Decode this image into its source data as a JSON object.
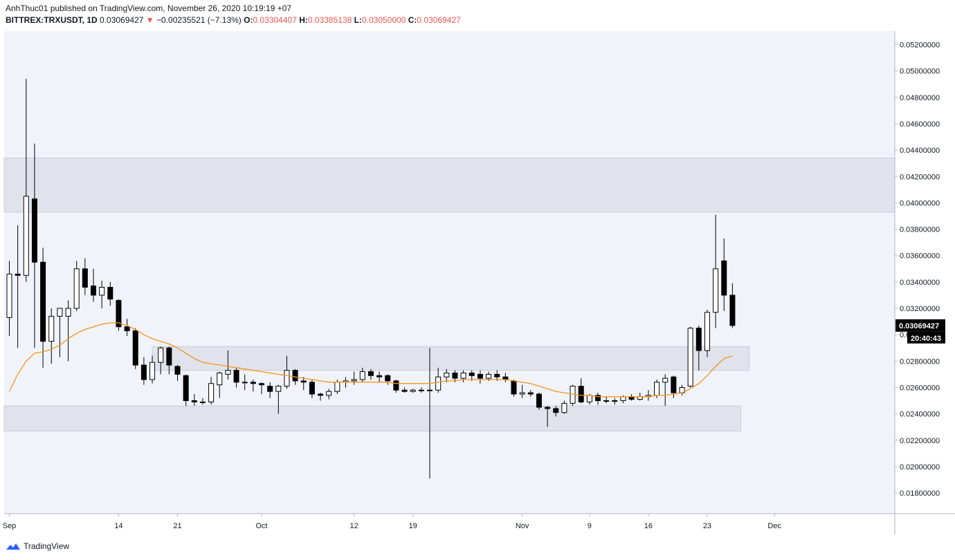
{
  "header": {
    "published_line": "AnhThuc01 published on TradingView.com, November 26, 2020 10:19:19 +07",
    "symbol": "BITTREX:TRXUSDT, 1D",
    "last": "0.03069427",
    "change_arrow": "▼",
    "change": "−0.00235521 (−7.13%)",
    "o_label": "O:",
    "o_value": "0.03304407",
    "h_label": "H:",
    "h_value": "0.03385138",
    "l_label": "L:",
    "l_value": "0.03050000",
    "c_label": "C:",
    "c_value": "0.03069427"
  },
  "footer": {
    "brand": "TradingView",
    "logo_icon": "tradingview-logo-icon"
  },
  "colors": {
    "up_body": "#ffffff",
    "down_body": "#000000",
    "wick": "#000000",
    "ma": "#f7931a",
    "zone": "#e0e3eb",
    "bg": "#f0f3fa",
    "price_tag": "#000000"
  },
  "chart_data": {
    "type": "candlestick",
    "ylim": [
      0.017,
      0.053
    ],
    "y_ticks": [
      "0.05200000",
      "0.05000000",
      "0.04800000",
      "0.04600000",
      "0.04400000",
      "0.04200000",
      "0.04000000",
      "0.03800000",
      "0.03600000",
      "0.03400000",
      "0.03200000",
      "0.03000000",
      "0.02800000",
      "0.02600000",
      "0.02400000",
      "0.02200000",
      "0.02000000",
      "0.01800000"
    ],
    "x_ticks": [
      {
        "label": "Sep",
        "date": "2020-09-01"
      },
      {
        "label": "14",
        "date": "2020-09-14"
      },
      {
        "label": "21",
        "date": "2020-09-21"
      },
      {
        "label": "Oct",
        "date": "2020-10-01"
      },
      {
        "label": "12",
        "date": "2020-10-12"
      },
      {
        "label": "19",
        "date": "2020-10-19"
      },
      {
        "label": "Nov",
        "date": "2020-11-01"
      },
      {
        "label": "9",
        "date": "2020-11-09"
      },
      {
        "label": "16",
        "date": "2020-11-16"
      },
      {
        "label": "23",
        "date": "2020-11-23"
      },
      {
        "label": "Dec",
        "date": "2020-12-01"
      }
    ],
    "price_label": "0.03069427",
    "countdown_label": "20:40:43",
    "zones": [
      {
        "from": "2020-08-31",
        "to": "2020-12-31",
        "low": 0.0393,
        "high": 0.0434
      },
      {
        "from": "2020-09-18",
        "to": "2020-11-28",
        "low": 0.0273,
        "high": 0.0291
      },
      {
        "from": "2020-08-31",
        "to": "2020-11-27",
        "low": 0.0227,
        "high": 0.0246
      }
    ],
    "candles": [
      {
        "d": "2020-09-01",
        "o": 0.0313,
        "h": 0.0356,
        "l": 0.0299,
        "c": 0.0346
      },
      {
        "d": "2020-09-02",
        "o": 0.0346,
        "h": 0.0383,
        "l": 0.029,
        "c": 0.0345
      },
      {
        "d": "2020-09-03",
        "o": 0.0345,
        "h": 0.0494,
        "l": 0.034,
        "c": 0.0405
      },
      {
        "d": "2020-09-04",
        "o": 0.0403,
        "h": 0.0445,
        "l": 0.029,
        "c": 0.0355
      },
      {
        "d": "2020-09-05",
        "o": 0.0355,
        "h": 0.0366,
        "l": 0.0275,
        "c": 0.0295
      },
      {
        "d": "2020-09-06",
        "o": 0.0295,
        "h": 0.032,
        "l": 0.0278,
        "c": 0.0314
      },
      {
        "d": "2020-09-07",
        "o": 0.0314,
        "h": 0.0318,
        "l": 0.0283,
        "c": 0.032
      },
      {
        "d": "2020-09-08",
        "o": 0.0314,
        "h": 0.0326,
        "l": 0.028,
        "c": 0.032
      },
      {
        "d": "2020-09-09",
        "o": 0.032,
        "h": 0.0356,
        "l": 0.0318,
        "c": 0.035
      },
      {
        "d": "2020-09-10",
        "o": 0.035,
        "h": 0.0358,
        "l": 0.033,
        "c": 0.0336
      },
      {
        "d": "2020-09-11",
        "o": 0.0337,
        "h": 0.035,
        "l": 0.0325,
        "c": 0.033
      },
      {
        "d": "2020-09-12",
        "o": 0.033,
        "h": 0.0341,
        "l": 0.032,
        "c": 0.0336
      },
      {
        "d": "2020-09-13",
        "o": 0.0336,
        "h": 0.034,
        "l": 0.0322,
        "c": 0.0327
      },
      {
        "d": "2020-09-14",
        "o": 0.0326,
        "h": 0.0327,
        "l": 0.0303,
        "c": 0.0306
      },
      {
        "d": "2020-09-15",
        "o": 0.0306,
        "h": 0.0312,
        "l": 0.0299,
        "c": 0.0303
      },
      {
        "d": "2020-09-16",
        "o": 0.0303,
        "h": 0.0305,
        "l": 0.0274,
        "c": 0.0277
      },
      {
        "d": "2020-09-17",
        "o": 0.0277,
        "h": 0.0283,
        "l": 0.0262,
        "c": 0.0266
      },
      {
        "d": "2020-09-18",
        "o": 0.0266,
        "h": 0.0284,
        "l": 0.0263,
        "c": 0.0279
      },
      {
        "d": "2020-09-19",
        "o": 0.0279,
        "h": 0.0291,
        "l": 0.027,
        "c": 0.029
      },
      {
        "d": "2020-09-20",
        "o": 0.029,
        "h": 0.0291,
        "l": 0.027,
        "c": 0.0277
      },
      {
        "d": "2020-09-21",
        "o": 0.0276,
        "h": 0.0277,
        "l": 0.0265,
        "c": 0.027
      },
      {
        "d": "2020-09-22",
        "o": 0.0269,
        "h": 0.027,
        "l": 0.0246,
        "c": 0.025
      },
      {
        "d": "2020-09-23",
        "o": 0.025,
        "h": 0.0255,
        "l": 0.0246,
        "c": 0.0249
      },
      {
        "d": "2020-09-24",
        "o": 0.0249,
        "h": 0.0252,
        "l": 0.0247,
        "c": 0.0249
      },
      {
        "d": "2020-09-25",
        "o": 0.0249,
        "h": 0.0268,
        "l": 0.0247,
        "c": 0.0263
      },
      {
        "d": "2020-09-26",
        "o": 0.0262,
        "h": 0.0272,
        "l": 0.0252,
        "c": 0.0271
      },
      {
        "d": "2020-09-27",
        "o": 0.027,
        "h": 0.0288,
        "l": 0.0266,
        "c": 0.0273
      },
      {
        "d": "2020-09-28",
        "o": 0.0273,
        "h": 0.0275,
        "l": 0.026,
        "c": 0.0264
      },
      {
        "d": "2020-09-29",
        "o": 0.0264,
        "h": 0.027,
        "l": 0.0258,
        "c": 0.0264
      },
      {
        "d": "2020-09-30",
        "o": 0.0264,
        "h": 0.0266,
        "l": 0.0257,
        "c": 0.0263
      },
      {
        "d": "2020-10-01",
        "o": 0.0263,
        "h": 0.0264,
        "l": 0.0255,
        "c": 0.0262
      },
      {
        "d": "2020-10-02",
        "o": 0.0261,
        "h": 0.0264,
        "l": 0.0252,
        "c": 0.0257
      },
      {
        "d": "2020-10-03",
        "o": 0.0257,
        "h": 0.0262,
        "l": 0.024,
        "c": 0.0261
      },
      {
        "d": "2020-10-04",
        "o": 0.0261,
        "h": 0.0284,
        "l": 0.0259,
        "c": 0.0273
      },
      {
        "d": "2020-10-05",
        "o": 0.0273,
        "h": 0.0274,
        "l": 0.0262,
        "c": 0.0265
      },
      {
        "d": "2020-10-06",
        "o": 0.0265,
        "h": 0.0268,
        "l": 0.0258,
        "c": 0.0264
      },
      {
        "d": "2020-10-07",
        "o": 0.0264,
        "h": 0.0266,
        "l": 0.0252,
        "c": 0.0255
      },
      {
        "d": "2020-10-08",
        "o": 0.0255,
        "h": 0.0256,
        "l": 0.025,
        "c": 0.0254
      },
      {
        "d": "2020-10-09",
        "o": 0.0254,
        "h": 0.0259,
        "l": 0.0251,
        "c": 0.0257
      },
      {
        "d": "2020-10-10",
        "o": 0.0257,
        "h": 0.0266,
        "l": 0.0255,
        "c": 0.0264
      },
      {
        "d": "2020-10-11",
        "o": 0.0264,
        "h": 0.0268,
        "l": 0.026,
        "c": 0.0265
      },
      {
        "d": "2020-10-12",
        "o": 0.0265,
        "h": 0.0272,
        "l": 0.0262,
        "c": 0.0266
      },
      {
        "d": "2020-10-13",
        "o": 0.0266,
        "h": 0.0275,
        "l": 0.0264,
        "c": 0.0272
      },
      {
        "d": "2020-10-14",
        "o": 0.0272,
        "h": 0.0274,
        "l": 0.0266,
        "c": 0.0269
      },
      {
        "d": "2020-10-15",
        "o": 0.0269,
        "h": 0.0272,
        "l": 0.0264,
        "c": 0.0268
      },
      {
        "d": "2020-10-16",
        "o": 0.0269,
        "h": 0.027,
        "l": 0.0262,
        "c": 0.0265
      },
      {
        "d": "2020-10-17",
        "o": 0.0265,
        "h": 0.0266,
        "l": 0.0256,
        "c": 0.0258
      },
      {
        "d": "2020-10-18",
        "o": 0.0258,
        "h": 0.026,
        "l": 0.0256,
        "c": 0.0257
      },
      {
        "d": "2020-10-19",
        "o": 0.0257,
        "h": 0.0259,
        "l": 0.0256,
        "c": 0.0258
      },
      {
        "d": "2020-10-20",
        "o": 0.0258,
        "h": 0.026,
        "l": 0.0256,
        "c": 0.0258
      },
      {
        "d": "2020-10-21",
        "o": 0.0258,
        "h": 0.029,
        "l": 0.0191,
        "c": 0.0258
      },
      {
        "d": "2020-10-22",
        "o": 0.0258,
        "h": 0.0275,
        "l": 0.0256,
        "c": 0.0268
      },
      {
        "d": "2020-10-23",
        "o": 0.0268,
        "h": 0.0274,
        "l": 0.0264,
        "c": 0.0271
      },
      {
        "d": "2020-10-24",
        "o": 0.0271,
        "h": 0.0273,
        "l": 0.0264,
        "c": 0.0267
      },
      {
        "d": "2020-10-25",
        "o": 0.0267,
        "h": 0.0273,
        "l": 0.0264,
        "c": 0.0271
      },
      {
        "d": "2020-10-26",
        "o": 0.0271,
        "h": 0.0273,
        "l": 0.0265,
        "c": 0.0269
      },
      {
        "d": "2020-10-27",
        "o": 0.027,
        "h": 0.0273,
        "l": 0.0263,
        "c": 0.0267
      },
      {
        "d": "2020-10-28",
        "o": 0.0267,
        "h": 0.0272,
        "l": 0.0265,
        "c": 0.027
      },
      {
        "d": "2020-10-29",
        "o": 0.027,
        "h": 0.0273,
        "l": 0.0265,
        "c": 0.0268
      },
      {
        "d": "2020-10-30",
        "o": 0.0268,
        "h": 0.0271,
        "l": 0.0264,
        "c": 0.0266
      },
      {
        "d": "2020-10-31",
        "o": 0.0265,
        "h": 0.0266,
        "l": 0.0253,
        "c": 0.0255
      },
      {
        "d": "2020-11-01",
        "o": 0.0255,
        "h": 0.0262,
        "l": 0.0252,
        "c": 0.0256
      },
      {
        "d": "2020-11-02",
        "o": 0.0256,
        "h": 0.0258,
        "l": 0.0253,
        "c": 0.0255
      },
      {
        "d": "2020-11-03",
        "o": 0.0255,
        "h": 0.0256,
        "l": 0.0243,
        "c": 0.0245
      },
      {
        "d": "2020-11-04",
        "o": 0.0245,
        "h": 0.0246,
        "l": 0.023,
        "c": 0.0244
      },
      {
        "d": "2020-11-05",
        "o": 0.0244,
        "h": 0.0246,
        "l": 0.0238,
        "c": 0.0241
      },
      {
        "d": "2020-11-06",
        "o": 0.0241,
        "h": 0.025,
        "l": 0.024,
        "c": 0.0248
      },
      {
        "d": "2020-11-07",
        "o": 0.0248,
        "h": 0.0262,
        "l": 0.0246,
        "c": 0.0261
      },
      {
        "d": "2020-11-08",
        "o": 0.0261,
        "h": 0.0267,
        "l": 0.0248,
        "c": 0.0249
      },
      {
        "d": "2020-11-09",
        "o": 0.0249,
        "h": 0.0255,
        "l": 0.0247,
        "c": 0.0254
      },
      {
        "d": "2020-11-10",
        "o": 0.0254,
        "h": 0.0256,
        "l": 0.0247,
        "c": 0.025
      },
      {
        "d": "2020-11-11",
        "o": 0.025,
        "h": 0.0253,
        "l": 0.0248,
        "c": 0.025
      },
      {
        "d": "2020-11-12",
        "o": 0.025,
        "h": 0.0252,
        "l": 0.0247,
        "c": 0.025
      },
      {
        "d": "2020-11-13",
        "o": 0.025,
        "h": 0.0254,
        "l": 0.0248,
        "c": 0.0253
      },
      {
        "d": "2020-11-14",
        "o": 0.0253,
        "h": 0.0255,
        "l": 0.025,
        "c": 0.0251
      },
      {
        "d": "2020-11-15",
        "o": 0.0251,
        "h": 0.0256,
        "l": 0.025,
        "c": 0.0253
      },
      {
        "d": "2020-11-16",
        "o": 0.0253,
        "h": 0.0258,
        "l": 0.025,
        "c": 0.0254
      },
      {
        "d": "2020-11-17",
        "o": 0.0254,
        "h": 0.0266,
        "l": 0.0252,
        "c": 0.0264
      },
      {
        "d": "2020-11-18",
        "o": 0.0264,
        "h": 0.027,
        "l": 0.0246,
        "c": 0.0267
      },
      {
        "d": "2020-11-19",
        "o": 0.0268,
        "h": 0.0269,
        "l": 0.0252,
        "c": 0.0256
      },
      {
        "d": "2020-11-20",
        "o": 0.0256,
        "h": 0.0262,
        "l": 0.0254,
        "c": 0.026
      },
      {
        "d": "2020-11-21",
        "o": 0.0261,
        "h": 0.0306,
        "l": 0.026,
        "c": 0.0305
      },
      {
        "d": "2020-11-22",
        "o": 0.0305,
        "h": 0.0307,
        "l": 0.0273,
        "c": 0.0288
      },
      {
        "d": "2020-11-23",
        "o": 0.0288,
        "h": 0.0319,
        "l": 0.0283,
        "c": 0.0317
      },
      {
        "d": "2020-11-24",
        "o": 0.0317,
        "h": 0.0391,
        "l": 0.0305,
        "c": 0.035
      },
      {
        "d": "2020-11-25",
        "o": 0.0356,
        "h": 0.0373,
        "l": 0.0318,
        "c": 0.033
      },
      {
        "d": "2020-11-26",
        "o": 0.033,
        "h": 0.0339,
        "l": 0.0305,
        "c": 0.0307
      }
    ],
    "ma": {
      "name": "",
      "values": [
        [
          "2020-09-01",
          0.0257
        ],
        [
          "2020-09-02",
          0.027
        ],
        [
          "2020-09-03",
          0.028
        ],
        [
          "2020-09-04",
          0.0286
        ],
        [
          "2020-09-05",
          0.0287
        ],
        [
          "2020-09-06",
          0.0289
        ],
        [
          "2020-09-07",
          0.0292
        ],
        [
          "2020-09-08",
          0.0297
        ],
        [
          "2020-09-09",
          0.0301
        ],
        [
          "2020-09-10",
          0.0304
        ],
        [
          "2020-09-11",
          0.0306
        ],
        [
          "2020-09-12",
          0.0308
        ],
        [
          "2020-09-13",
          0.0309
        ],
        [
          "2020-09-14",
          0.0309
        ],
        [
          "2020-09-15",
          0.0307
        ],
        [
          "2020-09-16",
          0.0304
        ],
        [
          "2020-09-17",
          0.03
        ],
        [
          "2020-09-18",
          0.0297
        ],
        [
          "2020-09-19",
          0.0295
        ],
        [
          "2020-09-20",
          0.0293
        ],
        [
          "2020-09-21",
          0.029
        ],
        [
          "2020-09-22",
          0.0286
        ],
        [
          "2020-09-23",
          0.0282
        ],
        [
          "2020-09-24",
          0.0279
        ],
        [
          "2020-09-25",
          0.0278
        ],
        [
          "2020-09-26",
          0.0277
        ],
        [
          "2020-09-27",
          0.0276
        ],
        [
          "2020-09-28",
          0.0275
        ],
        [
          "2020-09-29",
          0.0274
        ],
        [
          "2020-09-30",
          0.0273
        ],
        [
          "2020-10-01",
          0.0272
        ],
        [
          "2020-10-02",
          0.0271
        ],
        [
          "2020-10-03",
          0.027
        ],
        [
          "2020-10-04",
          0.0269
        ],
        [
          "2020-10-05",
          0.0268
        ],
        [
          "2020-10-06",
          0.0267
        ],
        [
          "2020-10-07",
          0.0266
        ],
        [
          "2020-10-08",
          0.0265
        ],
        [
          "2020-10-09",
          0.0264
        ],
        [
          "2020-10-10",
          0.0264
        ],
        [
          "2020-10-11",
          0.0264
        ],
        [
          "2020-10-12",
          0.0264
        ],
        [
          "2020-10-13",
          0.0264
        ],
        [
          "2020-10-14",
          0.0264
        ],
        [
          "2020-10-15",
          0.0264
        ],
        [
          "2020-10-16",
          0.0264
        ],
        [
          "2020-10-17",
          0.0263
        ],
        [
          "2020-10-18",
          0.0263
        ],
        [
          "2020-10-19",
          0.0263
        ],
        [
          "2020-10-20",
          0.0263
        ],
        [
          "2020-10-21",
          0.0263
        ],
        [
          "2020-10-22",
          0.0264
        ],
        [
          "2020-10-23",
          0.0265
        ],
        [
          "2020-10-24",
          0.0265
        ],
        [
          "2020-10-25",
          0.0266
        ],
        [
          "2020-10-26",
          0.0266
        ],
        [
          "2020-10-27",
          0.0266
        ],
        [
          "2020-10-28",
          0.0266
        ],
        [
          "2020-10-29",
          0.0266
        ],
        [
          "2020-10-30",
          0.0266
        ],
        [
          "2020-10-31",
          0.0265
        ],
        [
          "2020-11-01",
          0.0264
        ],
        [
          "2020-11-02",
          0.0263
        ],
        [
          "2020-11-03",
          0.0261
        ],
        [
          "2020-11-04",
          0.0259
        ],
        [
          "2020-11-05",
          0.0257
        ],
        [
          "2020-11-06",
          0.0256
        ],
        [
          "2020-11-07",
          0.0255
        ],
        [
          "2020-11-08",
          0.0254
        ],
        [
          "2020-11-09",
          0.0254
        ],
        [
          "2020-11-10",
          0.0253
        ],
        [
          "2020-11-11",
          0.0253
        ],
        [
          "2020-11-12",
          0.0253
        ],
        [
          "2020-11-13",
          0.0253
        ],
        [
          "2020-11-14",
          0.0253
        ],
        [
          "2020-11-15",
          0.0253
        ],
        [
          "2020-11-16",
          0.0253
        ],
        [
          "2020-11-17",
          0.0254
        ],
        [
          "2020-11-18",
          0.0254
        ],
        [
          "2020-11-19",
          0.0255
        ],
        [
          "2020-11-20",
          0.0256
        ],
        [
          "2020-11-21",
          0.0259
        ],
        [
          "2020-11-22",
          0.0263
        ],
        [
          "2020-11-23",
          0.0269
        ],
        [
          "2020-11-24",
          0.0276
        ],
        [
          "2020-11-25",
          0.0282
        ],
        [
          "2020-11-26",
          0.0284
        ]
      ]
    }
  }
}
